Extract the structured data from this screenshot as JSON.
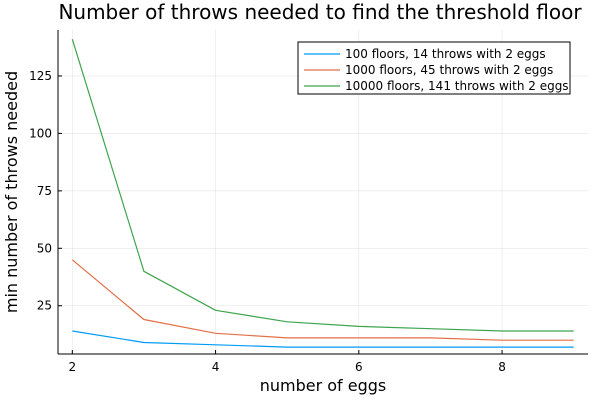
{
  "chart_data": {
    "type": "line",
    "title": "Number of throws needed to find the threshold floor",
    "xlabel": "number of eggs",
    "ylabel": "min number of throws needed",
    "x": [
      2,
      3,
      4,
      5,
      6,
      7,
      8,
      9
    ],
    "xlim": [
      1.8,
      9.2
    ],
    "ylim": [
      4,
      145
    ],
    "xticks": [
      2,
      4,
      6,
      8
    ],
    "yticks": [
      25,
      50,
      75,
      100,
      125
    ],
    "grid": true,
    "legend_position": "top-right",
    "series": [
      {
        "name": "100 floors, 14 throws with 2 eggs",
        "color": "#009AFA",
        "values": [
          14,
          9,
          8,
          7,
          7,
          7,
          7,
          7
        ]
      },
      {
        "name": "1000 floors, 45 throws with 2 eggs",
        "color": "#E36F47",
        "values": [
          45,
          19,
          13,
          11,
          11,
          11,
          10,
          10
        ]
      },
      {
        "name": "10000 floors, 141 throws with 2 eggs",
        "color": "#3EA44E",
        "values": [
          141,
          40,
          23,
          18,
          16,
          15,
          14,
          14
        ]
      }
    ]
  }
}
